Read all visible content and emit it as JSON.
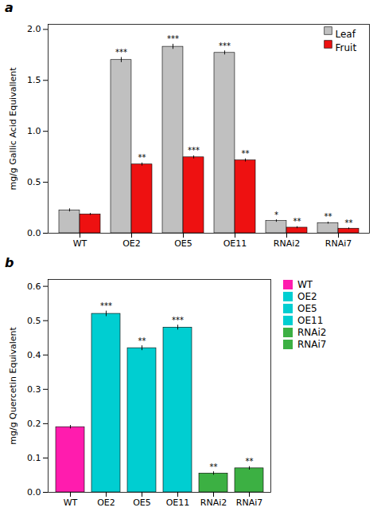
{
  "chart_data": [
    {
      "type": "bar",
      "title": "a",
      "categories": [
        "WT",
        "OE2",
        "OE5",
        "OE11",
        "RNAi2",
        "RNAi7"
      ],
      "series": [
        {
          "name": "Leaf",
          "color": "#C0C0C0",
          "values": [
            0.225,
            1.7,
            1.83,
            1.77,
            0.12,
            0.1
          ],
          "errors": [
            0.015,
            0.025,
            0.025,
            0.02,
            0.012,
            0.01
          ]
        },
        {
          "name": "Fruit",
          "color": "#EE1111",
          "values": [
            0.185,
            0.675,
            0.745,
            0.715,
            0.055,
            0.045
          ],
          "errors": [
            0.01,
            0.015,
            0.015,
            0.015,
            0.01,
            0.008
          ]
        }
      ],
      "ylabel": "mg/g Gallic Acid Equivallent",
      "ylim": [
        0,
        2.05
      ],
      "yticks": [
        {
          "value": 0,
          "label": "0.0"
        },
        0.5,
        {
          "value": 1,
          "label": "1.0"
        },
        1.5,
        {
          "value": 2,
          "label": "2.0"
        }
      ],
      "legend": "upper right",
      "annotations": [
        {
          "category": "OE2",
          "series": "Leaf",
          "text": "***"
        },
        {
          "category": "OE5",
          "series": "Leaf",
          "text": "***"
        },
        {
          "category": "OE11",
          "series": "Leaf",
          "text": "***"
        },
        {
          "category": "RNAi2",
          "series": "Leaf",
          "text": "*"
        },
        {
          "category": "RNAi7",
          "series": "Leaf",
          "text": "**"
        },
        {
          "category": "OE2",
          "series": "Fruit",
          "text": "**"
        },
        {
          "category": "OE5",
          "series": "Fruit",
          "text": "***"
        },
        {
          "category": "OE11",
          "series": "Fruit",
          "text": "**"
        },
        {
          "category": "RNAi2",
          "series": "Fruit",
          "text": "**"
        },
        {
          "category": "RNAi7",
          "series": "Fruit",
          "text": "**"
        }
      ]
    },
    {
      "type": "bar",
      "title": "b",
      "categories": [
        "WT",
        "OE2",
        "OE5",
        "OE11",
        "RNAi2",
        "RNAi7"
      ],
      "values": [
        0.19,
        0.52,
        0.42,
        0.48,
        0.055,
        0.07
      ],
      "errors": [
        0.005,
        0.008,
        0.007,
        0.007,
        0.005,
        0.005
      ],
      "colors": [
        "#FF1CAE",
        "#00CED1",
        "#00CED1",
        "#00CED1",
        "#3CB043",
        "#3CB043"
      ],
      "ylabel": "mg/g Quercetin Equivalent",
      "ylim": [
        0,
        0.62
      ],
      "yticks": [
        {
          "value": 0,
          "label": "0.0"
        },
        0.1,
        0.2,
        0.3,
        0.4,
        0.5,
        0.6
      ],
      "legend": "right",
      "annotations": [
        {
          "category": "OE2",
          "text": "***"
        },
        {
          "category": "OE5",
          "text": "**"
        },
        {
          "category": "OE11",
          "text": "***"
        },
        {
          "category": "RNAi2",
          "text": "**"
        },
        {
          "category": "RNAi7",
          "text": "**"
        }
      ]
    }
  ]
}
